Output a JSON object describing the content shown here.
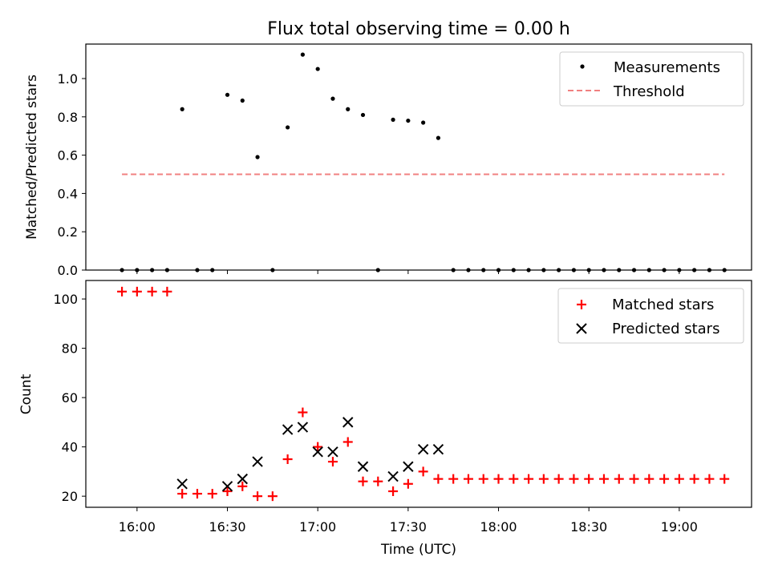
{
  "figure_title": "Flux total observing time = 0.00 h",
  "chart_data": [
    {
      "type": "scatter",
      "title": "Flux total observing time = 0.00 h",
      "xlabel": "",
      "ylabel": "Matched/Predicted stars",
      "xlim_minutes": [
        943,
        1164
      ],
      "ylim": [
        0,
        1.18
      ],
      "yticks": [
        "0.0",
        "0.2",
        "0.4",
        "0.6",
        "0.8",
        "1.0"
      ],
      "legend_position": "top-right",
      "series": [
        {
          "name": "Measurements",
          "kind": "points",
          "color": "#000000",
          "x": [
            "15:55",
            "16:00",
            "16:05",
            "16:10",
            "16:15",
            "16:20",
            "16:25",
            "16:30",
            "16:35",
            "16:40",
            "16:45",
            "16:50",
            "16:55",
            "17:00",
            "17:05",
            "17:10",
            "17:15",
            "17:20",
            "17:25",
            "17:30",
            "17:35",
            "17:40",
            "17:45",
            "17:50",
            "17:55",
            "18:00",
            "18:05",
            "18:10",
            "18:15",
            "18:20",
            "18:25",
            "18:30",
            "18:35",
            "18:40",
            "18:45",
            "18:50",
            "18:55",
            "19:00",
            "19:05",
            "19:10",
            "19:15"
          ],
          "y": [
            0,
            0,
            0,
            0,
            0.84,
            0,
            0,
            0.915,
            0.885,
            0.59,
            0,
            0.745,
            1.125,
            1.05,
            0.895,
            0.84,
            0.81,
            0,
            0.785,
            0.78,
            0.77,
            0.69,
            0,
            0,
            0,
            0,
            0,
            0,
            0,
            0,
            0,
            0,
            0,
            0,
            0,
            0,
            0,
            0,
            0,
            0,
            0
          ]
        },
        {
          "name": "Threshold",
          "kind": "dashed-line",
          "color": "#f08080",
          "x": [
            "15:55",
            "19:15"
          ],
          "y": [
            0.5,
            0.5
          ]
        }
      ]
    },
    {
      "type": "scatter",
      "title": "",
      "xlabel": "Time (UTC)",
      "ylabel": "Count",
      "xlim_minutes": [
        943,
        1164
      ],
      "ylim": [
        15.5,
        107.5
      ],
      "yticks": [
        "20",
        "40",
        "60",
        "80",
        "100"
      ],
      "xticks": [
        "16:00",
        "16:30",
        "17:00",
        "17:30",
        "18:00",
        "18:30",
        "19:00"
      ],
      "legend_position": "top-right",
      "series": [
        {
          "name": "Matched stars",
          "marker": "plus",
          "color": "#ff0000",
          "x": [
            "15:55",
            "16:00",
            "16:05",
            "16:10",
            "16:15",
            "16:20",
            "16:25",
            "16:30",
            "16:35",
            "16:40",
            "16:45",
            "16:50",
            "16:55",
            "17:00",
            "17:05",
            "17:10",
            "17:15",
            "17:20",
            "17:25",
            "17:30",
            "17:35",
            "17:40",
            "17:45",
            "17:50",
            "17:55",
            "18:00",
            "18:05",
            "18:10",
            "18:15",
            "18:20",
            "18:25",
            "18:30",
            "18:35",
            "18:40",
            "18:45",
            "18:50",
            "18:55",
            "19:00",
            "19:05",
            "19:10",
            "19:15"
          ],
          "y": [
            103,
            103,
            103,
            103,
            21,
            21,
            21,
            22,
            24,
            20,
            20,
            35,
            54,
            40,
            34,
            42,
            26,
            26,
            22,
            25,
            30,
            27,
            27,
            27,
            27,
            27,
            27,
            27,
            27,
            27,
            27,
            27,
            27,
            27,
            27,
            27,
            27,
            27,
            27,
            27,
            27
          ]
        },
        {
          "name": "Predicted stars",
          "marker": "x",
          "color": "#000000",
          "x": [
            "16:15",
            "16:30",
            "16:35",
            "16:40",
            "16:50",
            "16:55",
            "17:00",
            "17:05",
            "17:10",
            "17:15",
            "17:25",
            "17:30",
            "17:35",
            "17:40"
          ],
          "y": [
            25,
            24,
            27,
            34,
            47,
            48,
            38,
            38,
            50,
            32,
            28,
            32,
            39,
            39
          ]
        }
      ]
    }
  ]
}
